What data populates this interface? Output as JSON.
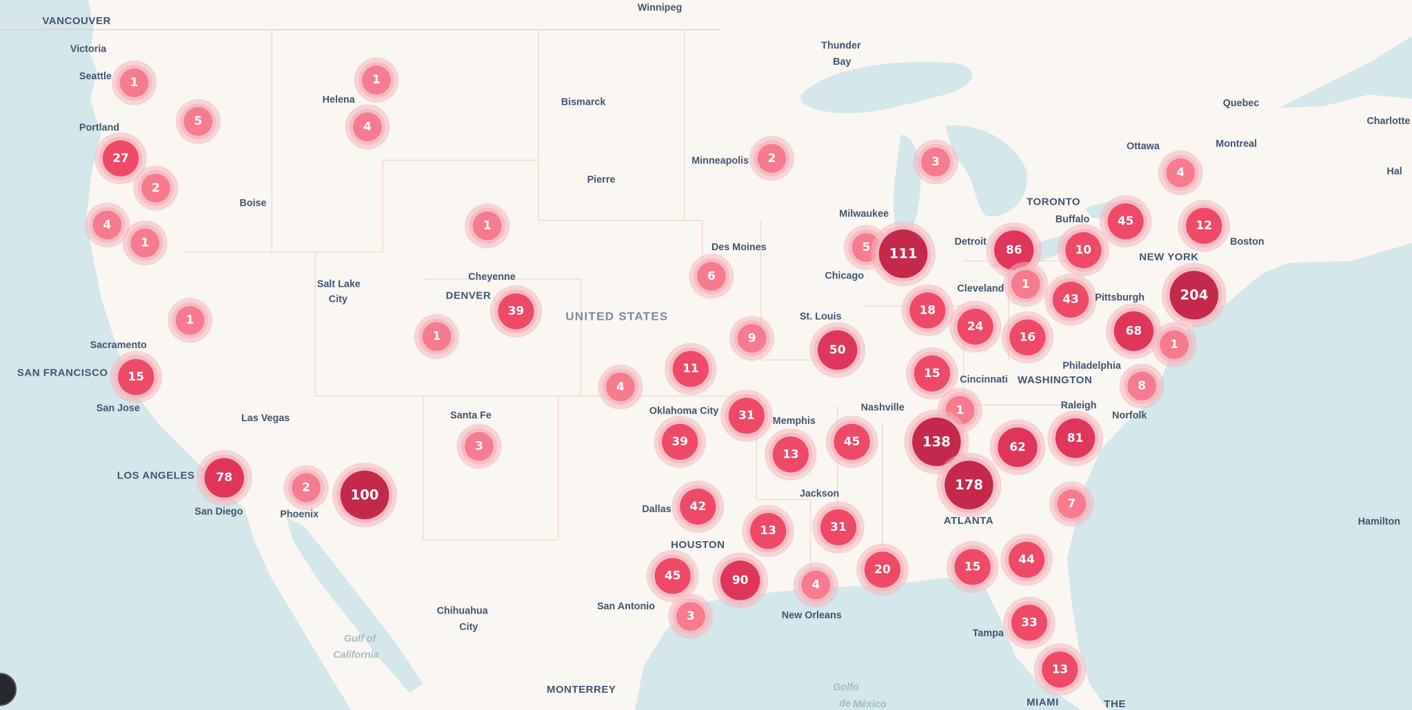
{
  "map": {
    "country_label": "UNITED STATES",
    "land_color": "#faf7f2",
    "water_color": "#d4e7ea",
    "cluster_colors": {
      "small": "#f77b8e",
      "medium": "#ee4a67",
      "large": "#e0355a",
      "xlarge": "#c4284a",
      "halo": "#f4b6be"
    },
    "cities": [
      "VANCOUVER",
      "Victoria",
      "Seattle",
      "Portland",
      "Helena",
      "Bismarck",
      "Thunder",
      "Bay",
      "Winnipeg",
      "Quebec",
      "Charlotte",
      "Ottawa",
      "Montreal",
      "Hal",
      "Minneapolis",
      "Pierre",
      "Boise",
      "TORONTO",
      "Buffalo",
      "Milwaukee",
      "Boston",
      "Detroit",
      "Des Moines",
      "Chicago",
      "Cheyenne",
      "Salt Lake",
      "City",
      "Cleveland",
      "Pittsburgh",
      "NEW YORK",
      "DENVER",
      "Philadelphia",
      "Sacramento",
      "Cincinnati",
      "WASHINGTON",
      "St. Louis",
      "SAN FRANCISCO",
      "San Jose",
      "Norfolk",
      "Nashville",
      "Las Vegas",
      "Santa Fe",
      "Oklahoma City",
      "Memphis",
      "Raleigh",
      "LOS ANGELES",
      "Phoenix",
      "ATLANTA",
      "San Diego",
      "Dallas",
      "Jackson",
      "Hamilton",
      "San Antonio",
      "HOUSTON",
      "New Orleans",
      "Chihuahua",
      "City",
      "Gulf of",
      "California",
      "Tampa",
      "MONTERREY",
      "Golfo",
      "de",
      "México",
      "MIAMI",
      "THE"
    ],
    "clusters": [
      1,
      1,
      5,
      4,
      27,
      2,
      4,
      1,
      1,
      2,
      3,
      4,
      45,
      12,
      5,
      111,
      86,
      10,
      6,
      1,
      43,
      204,
      1,
      39,
      1,
      18,
      24,
      16,
      68,
      1,
      9,
      50,
      15,
      11,
      15,
      4,
      8,
      31,
      1,
      39,
      138,
      3,
      13,
      45,
      62,
      81,
      78,
      2,
      100,
      178,
      7,
      42,
      13,
      31,
      45,
      90,
      4,
      20,
      15,
      44,
      3,
      33,
      13
    ]
  },
  "controls": {
    "corner_button_icon": "map-control-icon"
  }
}
